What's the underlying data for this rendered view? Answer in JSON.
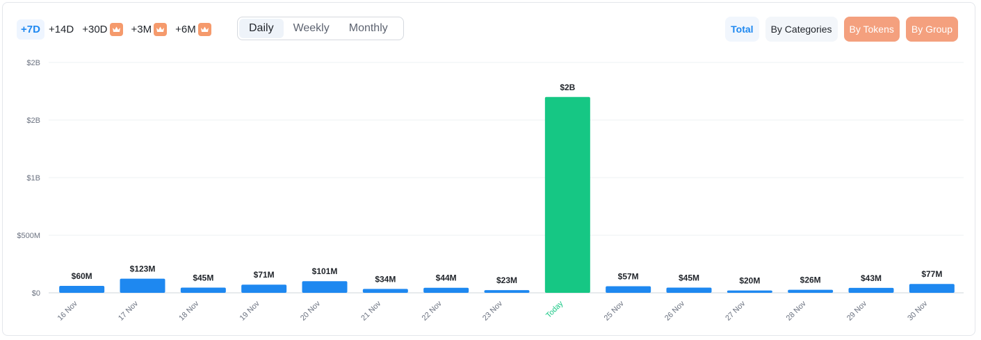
{
  "time_ranges": [
    {
      "label": "+7D",
      "active": true,
      "premium": false
    },
    {
      "label": "+14D",
      "active": false,
      "premium": false
    },
    {
      "label": "+30D",
      "active": false,
      "premium": true
    },
    {
      "label": "+3M",
      "active": false,
      "premium": true
    },
    {
      "label": "+6M",
      "active": false,
      "premium": true
    }
  ],
  "premium_icon": "crown-icon",
  "periods": [
    {
      "label": "Daily",
      "active": true
    },
    {
      "label": "Weekly",
      "active": false
    },
    {
      "label": "Monthly",
      "active": false
    }
  ],
  "views": [
    {
      "label": "Total",
      "style": "total"
    },
    {
      "label": "By Categories",
      "style": "plain"
    },
    {
      "label": "By Tokens",
      "style": "premium"
    },
    {
      "label": "By Group",
      "style": "premium"
    }
  ],
  "colors": {
    "bar": "#1e88f0",
    "highlight_bar": "#16c784",
    "accent": "#1e88f0",
    "premium": "#f4a07e"
  },
  "chart_data": {
    "type": "bar",
    "categories": [
      "16 Nov",
      "17 Nov",
      "18 Nov",
      "19 Nov",
      "20 Nov",
      "21 Nov",
      "22 Nov",
      "23 Nov",
      "Today",
      "25 Nov",
      "26 Nov",
      "27 Nov",
      "28 Nov",
      "29 Nov",
      "30 Nov"
    ],
    "values": [
      60,
      123,
      45,
      71,
      101,
      34,
      44,
      23,
      1700,
      57,
      45,
      20,
      26,
      43,
      77
    ],
    "value_unit": "$M",
    "data_labels": [
      "$60M",
      "$123M",
      "$45M",
      "$71M",
      "$101M",
      "$34M",
      "$44M",
      "$23M",
      "$2B",
      "$57M",
      "$45M",
      "$20M",
      "$26M",
      "$43M",
      "$77M"
    ],
    "highlight_category": "Today",
    "y_ticks": [
      0,
      500,
      1000,
      1500,
      2000
    ],
    "y_tick_labels": [
      "$0",
      "$500M",
      "$1B",
      "$2B",
      "$2B"
    ],
    "ylim": [
      0,
      2000
    ],
    "grid": true,
    "legend": false
  }
}
